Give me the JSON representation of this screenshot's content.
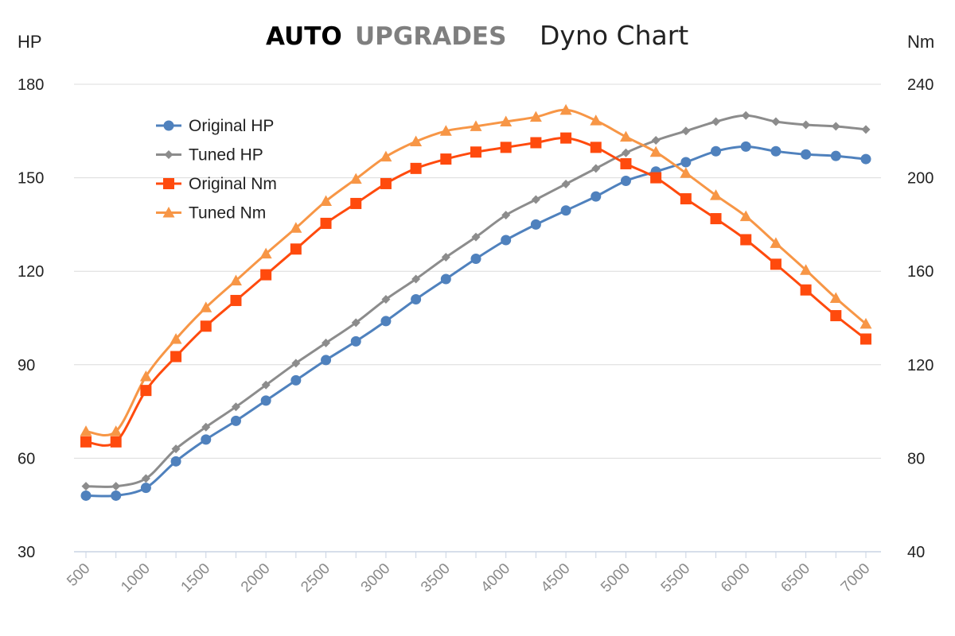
{
  "chart_data": {
    "type": "line",
    "title": {
      "brand_part1": "AUTO",
      "brand_part2": "UPGRADES",
      "main": "Dyno Chart"
    },
    "ylabel_left": "HP",
    "ylabel_right": "Nm",
    "ylim_left": [
      30,
      180
    ],
    "ylim_right": [
      40,
      240
    ],
    "yticks_left": [
      "180",
      "150",
      "120",
      "90",
      "60",
      "30"
    ],
    "yticks_right": [
      "240",
      "200",
      "160",
      "120",
      "80",
      "40"
    ],
    "x": [
      500,
      750,
      1000,
      1250,
      1500,
      1750,
      2000,
      2250,
      2500,
      2750,
      3000,
      3250,
      3500,
      3750,
      4000,
      4250,
      4500,
      4750,
      5000,
      5250,
      5500,
      5750,
      6000,
      6250,
      6500,
      6750,
      7000
    ],
    "xticks": [
      "500",
      "1000",
      "1500",
      "2000",
      "2500",
      "3000",
      "3500",
      "4000",
      "4500",
      "5000",
      "5500",
      "6000",
      "6500",
      "7000"
    ],
    "xlim": [
      500,
      7000
    ],
    "legend_position": "top-left",
    "series": [
      {
        "name": "Original HP",
        "axis": "left",
        "color": "#4f81bd",
        "marker": "circle",
        "values": [
          48,
          48,
          50.5,
          59,
          66,
          72,
          78.5,
          85,
          91.5,
          97.5,
          104,
          111,
          117.5,
          124,
          130,
          135,
          139.5,
          144,
          149,
          152,
          155,
          158.5,
          160,
          158.5,
          157.5,
          157,
          156
        ]
      },
      {
        "name": "Tuned HP",
        "axis": "left",
        "color": "#8c8c8c",
        "marker": "diamond",
        "values": [
          51,
          51,
          53.5,
          63,
          70,
          76.5,
          83.5,
          90.5,
          97,
          103.5,
          111,
          117.5,
          124.5,
          131,
          138,
          143,
          148,
          153,
          158,
          162,
          165,
          168,
          170,
          168,
          167,
          166.5,
          165.5
        ]
      },
      {
        "name": "Original Nm",
        "axis": "right",
        "color": "#ff4a0d",
        "marker": "square",
        "values": [
          87,
          87,
          109,
          123.5,
          136.5,
          147.5,
          158.5,
          169.5,
          180.5,
          189,
          197.5,
          204,
          208,
          211,
          213,
          215,
          217,
          213,
          206,
          200,
          191,
          182.5,
          173.5,
          163,
          152,
          141,
          131
        ]
      },
      {
        "name": "Tuned Nm",
        "axis": "right",
        "color": "#f79646",
        "marker": "triangle",
        "values": [
          91.5,
          91.5,
          115,
          131,
          144.5,
          156,
          167.5,
          178.5,
          190,
          199.5,
          209,
          215.5,
          220,
          222,
          224,
          226,
          229,
          224.5,
          217.5,
          211,
          202,
          192.5,
          183.5,
          172,
          160.5,
          148.5,
          137.5
        ]
      }
    ]
  }
}
